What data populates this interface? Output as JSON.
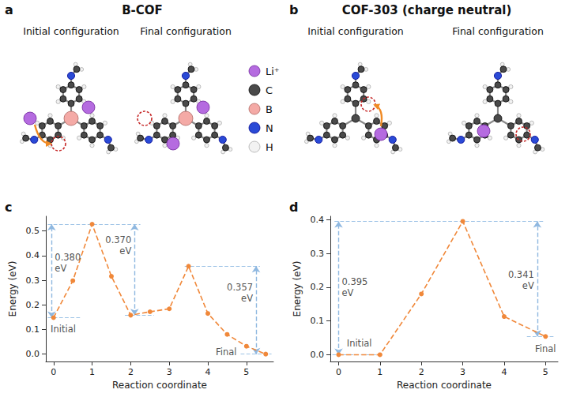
{
  "figure": {
    "panels": [
      {
        "letter": "a",
        "title": "B-COF",
        "configurations": [
          "Initial configuration",
          "Final configuration"
        ]
      },
      {
        "letter": "b",
        "title": "COF-303 (charge neutral)",
        "configurations": [
          "Initial configuration",
          "Final configuration"
        ]
      }
    ],
    "atom_legend": [
      {
        "label": "Li⁺",
        "color": "#b56be0"
      },
      {
        "label": "C",
        "color": "#4a4a4a"
      },
      {
        "label": "B",
        "color": "#f4aaa6"
      },
      {
        "label": "N",
        "color": "#2a4ad6"
      },
      {
        "label": "H",
        "color": "#f2f2f2"
      }
    ]
  },
  "chart_data": [
    {
      "panel": "c",
      "type": "line",
      "x": [
        0,
        0.5,
        1,
        1.5,
        2,
        2.5,
        3,
        3.5,
        4,
        4.5,
        5,
        5.5
      ],
      "values": [
        0.148,
        0.298,
        0.528,
        0.316,
        0.158,
        0.172,
        0.184,
        0.357,
        0.165,
        0.08,
        0.032,
        0.0
      ],
      "color": "#f0883a",
      "marker": "circle",
      "line_style": "dashed",
      "xlabel": "Reaction coordinate",
      "ylabel": "Energy (eV)",
      "xlim": [
        -0.2,
        5.7
      ],
      "ylim": [
        -0.03,
        0.56
      ],
      "xticks": [
        0,
        1,
        2,
        3,
        4,
        5
      ],
      "yticks": [
        {
          "value": 0,
          "label": "0.0"
        },
        0.1,
        0.2,
        0.3,
        0.4,
        0.5
      ],
      "grid": false,
      "annotations": [
        {
          "text": "0.380 eV",
          "y_from": 0.148,
          "y_to": 0.528
        },
        {
          "text": "0.370 eV",
          "y_from": 0.158,
          "y_to": 0.528
        },
        {
          "text": "0.357 eV",
          "y_from": 0.0,
          "y_to": 0.357
        },
        {
          "text": "Initial"
        },
        {
          "text": "Final"
        }
      ]
    },
    {
      "panel": "d",
      "type": "line",
      "x": [
        0,
        1,
        2,
        3,
        4,
        5
      ],
      "values": [
        0.0,
        0.0,
        0.18,
        0.395,
        0.113,
        0.054
      ],
      "color": "#f0883a",
      "marker": "circle",
      "line_style": "dashed",
      "xlabel": "Reaction coordinate",
      "ylabel": "Energy (eV)",
      "xlim": [
        -0.2,
        5.3
      ],
      "ylim": [
        -0.02,
        0.41
      ],
      "xticks": [
        0,
        1,
        2,
        3,
        4,
        5
      ],
      "yticks": [
        {
          "value": 0,
          "label": "0.0"
        },
        0.1,
        0.2,
        0.3,
        0.4
      ],
      "grid": false,
      "annotations": [
        {
          "text": "0.395 eV",
          "y_from": 0.0,
          "y_to": 0.395
        },
        {
          "text": "0.341 eV",
          "y_from": 0.054,
          "y_to": 0.395
        },
        {
          "text": "Initial"
        },
        {
          "text": "Final"
        }
      ]
    }
  ]
}
